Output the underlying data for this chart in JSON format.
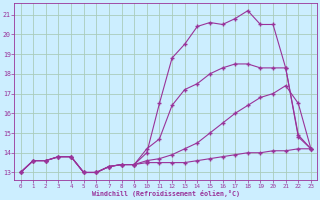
{
  "xlabel": "Windchill (Refroidissement éolien,°C)",
  "bg_color": "#cceeff",
  "grid_color": "#aaccbb",
  "line_color": "#993399",
  "hours": [
    0,
    1,
    2,
    3,
    4,
    5,
    6,
    7,
    8,
    9,
    10,
    11,
    12,
    13,
    14,
    15,
    16,
    17,
    18,
    19,
    20,
    21,
    22,
    23
  ],
  "line1": [
    13.0,
    13.6,
    13.6,
    13.8,
    13.8,
    13.0,
    13.0,
    13.3,
    13.4,
    13.4,
    13.5,
    13.5,
    13.5,
    13.5,
    13.6,
    13.7,
    13.8,
    13.9,
    14.0,
    14.0,
    14.1,
    14.1,
    14.2,
    14.2
  ],
  "line2": [
    13.0,
    13.6,
    13.6,
    13.8,
    13.8,
    13.0,
    13.0,
    13.3,
    13.4,
    13.4,
    13.6,
    13.7,
    13.9,
    14.2,
    14.5,
    15.0,
    15.5,
    16.0,
    16.4,
    16.8,
    17.0,
    17.4,
    16.5,
    14.2
  ],
  "line3": [
    13.0,
    13.6,
    13.6,
    13.8,
    13.8,
    13.0,
    13.0,
    13.3,
    13.4,
    13.4,
    14.2,
    14.7,
    16.4,
    17.2,
    17.5,
    18.0,
    18.3,
    18.5,
    18.5,
    18.3,
    18.3,
    18.3,
    14.8,
    14.2
  ],
  "line4": [
    13.0,
    13.6,
    13.6,
    13.8,
    13.8,
    13.0,
    13.0,
    13.3,
    13.4,
    13.4,
    14.0,
    16.5,
    18.8,
    19.5,
    20.4,
    20.6,
    20.5,
    20.8,
    21.2,
    20.5,
    20.5,
    18.3,
    14.9,
    14.2
  ],
  "ylim": [
    12.6,
    21.6
  ],
  "xlim_min": -0.5,
  "xlim_max": 23.5,
  "yticks": [
    13,
    14,
    15,
    16,
    17,
    18,
    19,
    20,
    21
  ],
  "xticks": [
    0,
    1,
    2,
    3,
    4,
    5,
    6,
    7,
    8,
    9,
    10,
    11,
    12,
    13,
    14,
    15,
    16,
    17,
    18,
    19,
    20,
    21,
    22,
    23
  ]
}
